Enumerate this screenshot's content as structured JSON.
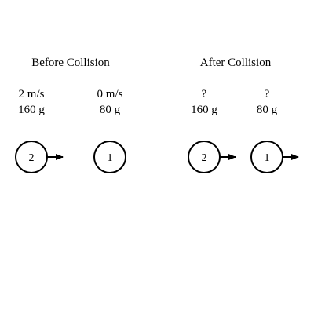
{
  "before": {
    "title": "Before Collision",
    "balls": [
      {
        "label": "2",
        "speed": "2 m/s",
        "mass": "160 g",
        "arrow": true
      },
      {
        "label": "1",
        "speed": "0 m/s",
        "mass": "80 g",
        "arrow": false
      }
    ]
  },
  "after": {
    "title": "After Collision",
    "balls": [
      {
        "label": "2",
        "speed": "?",
        "mass": "160 g",
        "arrow": true
      },
      {
        "label": "1",
        "speed": "?",
        "mass": "80 g",
        "arrow": true
      }
    ]
  }
}
